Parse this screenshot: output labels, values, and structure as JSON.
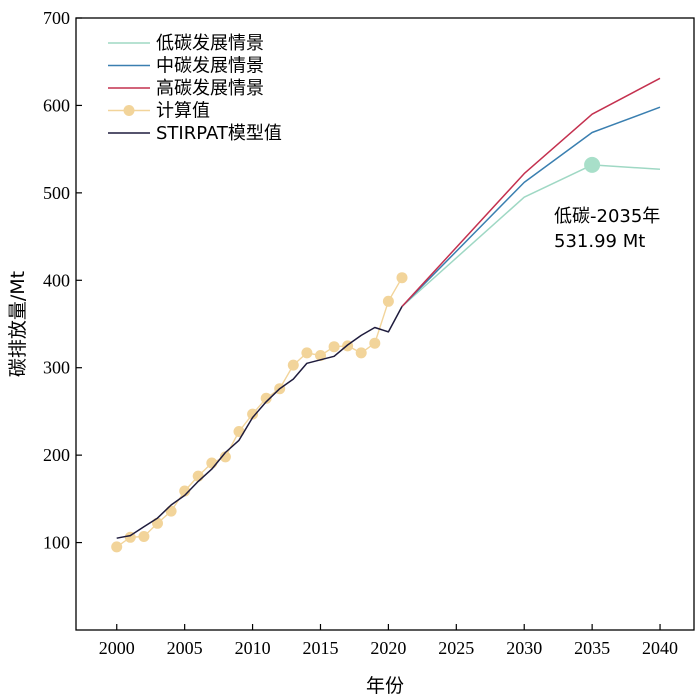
{
  "chart_data": {
    "type": "line",
    "xlabel": "年份",
    "ylabel": "碳排放量/Mt",
    "xlim": [
      1997,
      2042.5
    ],
    "ylim": [
      0,
      700
    ],
    "x_ticks": [
      2000,
      2005,
      2010,
      2015,
      2020,
      2025,
      2030,
      2035,
      2040
    ],
    "y_ticks": [
      100,
      200,
      300,
      400,
      500,
      600,
      700
    ],
    "legend_position": "top-left",
    "series": [
      {
        "name": "低碳发展情景",
        "color": "#9fd8c4",
        "marker": "none",
        "x": [
          2021,
          2030,
          2035,
          2040
        ],
        "y": [
          370,
          495,
          532,
          527
        ]
      },
      {
        "name": "中碳发展情景",
        "color": "#3a7fb0",
        "marker": "none",
        "x": [
          2021,
          2030,
          2035,
          2040
        ],
        "y": [
          370,
          512,
          569,
          598
        ]
      },
      {
        "name": "高碳发展情景",
        "color": "#c4314f",
        "marker": "none",
        "x": [
          2021,
          2030,
          2035,
          2040
        ],
        "y": [
          370,
          522,
          590,
          631
        ]
      },
      {
        "name": "计算值",
        "color": "#f2d49a",
        "marker": "circle",
        "x": [
          2000,
          2001,
          2002,
          2003,
          2004,
          2005,
          2006,
          2007,
          2008,
          2009,
          2010,
          2011,
          2012,
          2013,
          2014,
          2015,
          2016,
          2017,
          2018,
          2019,
          2020,
          2021
        ],
        "y": [
          95,
          106,
          107,
          122,
          136,
          159,
          176,
          191,
          198,
          227,
          247,
          265,
          276,
          303,
          317,
          314,
          324,
          325,
          317,
          328,
          376,
          403
        ]
      },
      {
        "name": "STIRPAT模型值",
        "color": "#1f1c3d",
        "marker": "none",
        "x": [
          2000,
          2001,
          2002,
          2003,
          2004,
          2005,
          2006,
          2007,
          2008,
          2009,
          2010,
          2011,
          2012,
          2013,
          2014,
          2015,
          2016,
          2017,
          2018,
          2019,
          2020,
          2021
        ],
        "y": [
          105,
          108,
          118,
          128,
          143,
          154,
          170,
          184,
          203,
          217,
          243,
          261,
          276,
          287,
          305,
          309,
          313,
          326,
          337,
          346,
          341,
          370
        ]
      }
    ],
    "annotation": {
      "x": 2035,
      "y": 531.99,
      "color": "#a8dfc9",
      "line1": "低碳-2035年",
      "line2": "531.99 Mt"
    }
  }
}
